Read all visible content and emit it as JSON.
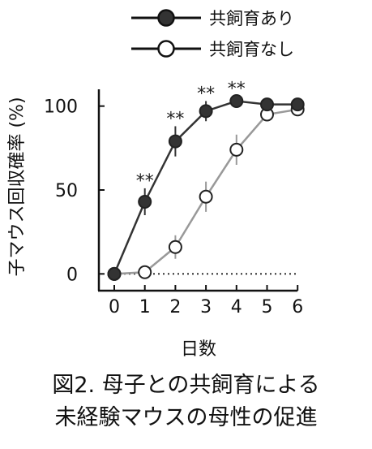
{
  "chart_data": {
    "type": "line",
    "x": [
      0,
      1,
      2,
      3,
      4,
      5,
      6
    ],
    "xlabel": "日数",
    "ylabel": "子マウス回収確率 (%)",
    "ylim": [
      -10,
      110
    ],
    "yticks": [
      0,
      50,
      100
    ],
    "xticks": [
      "0",
      "1",
      "2",
      "3",
      "4",
      "5",
      "6"
    ],
    "series": [
      {
        "name": "共飼育あり",
        "marker": "filled",
        "color": "#333333",
        "values": [
          0,
          43,
          79,
          97,
          103,
          101,
          101
        ],
        "errors": [
          0,
          8,
          9,
          6,
          3,
          3,
          3
        ]
      },
      {
        "name": "共飼育なし",
        "marker": "open",
        "color": "#999999",
        "values": [
          0,
          1,
          16,
          46,
          74,
          95,
          98
        ],
        "errors": [
          0,
          0,
          7,
          9,
          9,
          3,
          3
        ]
      }
    ],
    "significance": [
      {
        "x": 1,
        "label": "**"
      },
      {
        "x": 2,
        "label": "**"
      },
      {
        "x": 3,
        "label": "**"
      },
      {
        "x": 4,
        "label": "**"
      }
    ],
    "baseline": {
      "y": 0,
      "style": "dotted"
    },
    "legend": "top-right",
    "grid": false
  },
  "caption": {
    "line1": "図2. 母子との共飼育による",
    "line2": "未経験マウスの母性の促進"
  }
}
